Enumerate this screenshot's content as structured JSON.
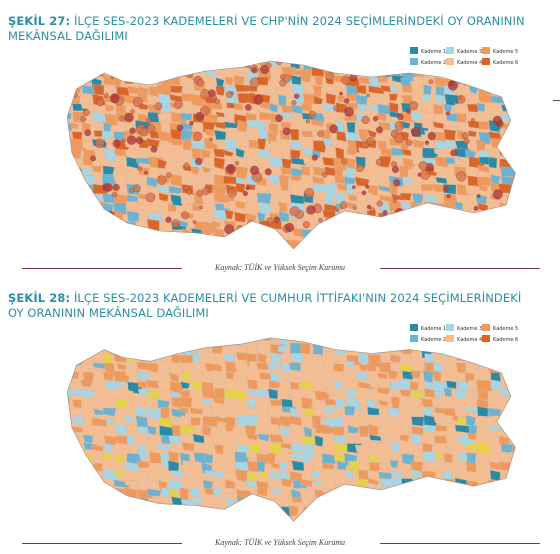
{
  "figures": [
    {
      "label": "ŞEKİL 27:",
      "title": "İLÇE SES-2023 KADEMELERİ VE CHP'NİN 2024 SEÇİMLERİNDEKİ OY ORANININ MEKÂNSAL DAĞILIMI",
      "legend": [
        {
          "name": "Kademe 1",
          "color": "#2b8aa6"
        },
        {
          "name": "Kademe 2",
          "color": "#6db3cf"
        },
        {
          "name": "Kademe 3",
          "color": "#a9d4e2"
        },
        {
          "name": "Kademe 4",
          "color": "#f5bd92"
        },
        {
          "name": "Kademe 5",
          "color": "#ef9a5c"
        },
        {
          "name": "Kademe 6",
          "color": "#dc6627"
        }
      ],
      "source": "Kaynak: TÜİK ve Yüksek Seçim Kurumu"
    },
    {
      "label": "ŞEKİL 28:",
      "title": "İLÇE SES-2023 KADEMELERİ VE CUMHUR İTTİFAKI'NIN 2024 SEÇİMLERİNDEKİ OY ORANININ MEKÂNSAL DAĞILIMI",
      "legend": [
        {
          "name": "Kademe 1",
          "color": "#2b8aa6"
        },
        {
          "name": "Kademe 2",
          "color": "#6db3cf"
        },
        {
          "name": "Kademe 3",
          "color": "#a9d4e2"
        },
        {
          "name": "Kademe 4",
          "color": "#f5bd92"
        },
        {
          "name": "Kademe 5",
          "color": "#ef9a5c"
        },
        {
          "name": "Kademe 6",
          "color": "#dc6627"
        }
      ],
      "source": "Kaynak: TÜİK ve Yüksek Seçim Kurumu"
    }
  ]
}
